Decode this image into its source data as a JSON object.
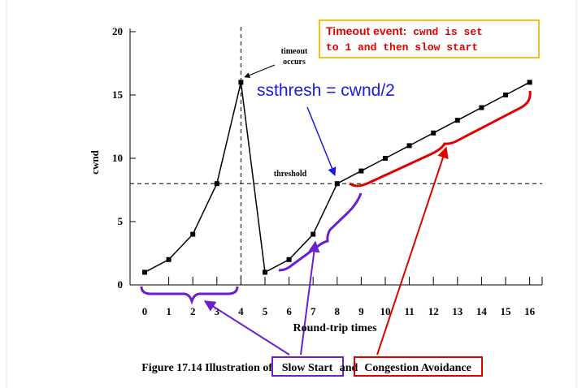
{
  "chart_data": {
    "type": "line",
    "title": "",
    "xlabel": "Round-trip times",
    "ylabel": "cwnd",
    "xlim": [
      0,
      16
    ],
    "ylim": [
      0,
      20
    ],
    "x_ticks": [
      "0",
      "1",
      "2",
      "3",
      "4",
      "5",
      "6",
      "7",
      "8",
      "9",
      "10",
      "11",
      "12",
      "13",
      "14",
      "15",
      "16"
    ],
    "y_ticks": [
      "0",
      "5",
      "10",
      "15",
      "20"
    ],
    "grid": false,
    "series": [
      {
        "x": [
          0,
          1,
          2,
          3,
          4,
          5,
          6,
          7,
          8,
          9,
          10,
          11,
          12,
          13,
          14,
          15,
          16
        ],
        "values": [
          1,
          2,
          4,
          8,
          16,
          1,
          2,
          4,
          8,
          9,
          10,
          11,
          12,
          13,
          14,
          15,
          16
        ]
      }
    ],
    "threshold": {
      "value": 8,
      "label": "threshold"
    },
    "timeout_line": {
      "x": 4
    },
    "annotations": {
      "timeout": [
        "timeout",
        "occurs"
      ],
      "ssthresh": "ssthresh = cwnd/2",
      "box_bold": "Timeout event:",
      "box_line1": " cwnd is set",
      "box_line2": "to 1 and then slow start"
    },
    "caption": {
      "prefix": "Figure 17.14  Illustration of ",
      "slow_start": "Slow Start",
      "middle": " and ",
      "congestion": "Congestion Avoidance"
    },
    "colors": {
      "line": "#000000",
      "purple": "#6a1fd0",
      "red": "#e00000",
      "blue": "#1a1ae6",
      "box_border": "#f0c020"
    }
  }
}
